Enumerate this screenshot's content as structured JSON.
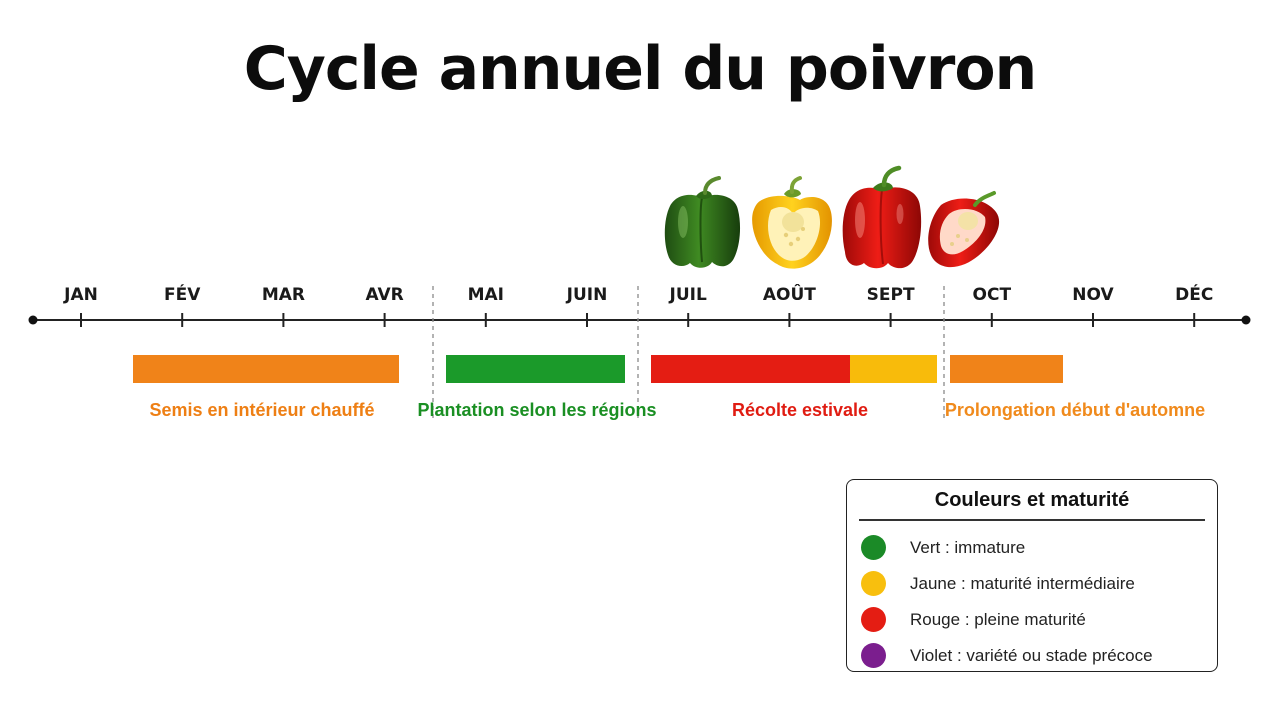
{
  "title": "Cycle annuel du poivron",
  "months": [
    "JAN",
    "FÉV",
    "MAR",
    "AVR",
    "MAI",
    "JUIN",
    "JUIL",
    "AOÛT",
    "SEPT",
    "OCT",
    "NOV",
    "DÉC"
  ],
  "phases": [
    {
      "label": "Semis en intérieur chauffé",
      "color": "#f08319",
      "start": "mi-février",
      "end": "fin avril"
    },
    {
      "label": "Plantation selon les régions",
      "color": "#1b9a2a",
      "start": "début mai",
      "end": "fin juin"
    },
    {
      "label": "Récolte estivale",
      "color": "#e41d13",
      "start": "début juillet",
      "end": "fin septembre",
      "segment_colors": [
        "#e41d13",
        "#f8bb0b"
      ]
    },
    {
      "label": "Prolongation début d'automne",
      "color": "#f08319",
      "start": "début octobre",
      "end": "mi-novembre"
    }
  ],
  "peppers": [
    "green-pepper",
    "yellow-pepper-half",
    "red-pepper",
    "red-pepper-half"
  ],
  "legend": {
    "title": "Couleurs et maturité",
    "items": [
      {
        "label": "Vert : immature",
        "color": "#1b8a27"
      },
      {
        "label": "Jaune : maturité intermédiaire",
        "color": "#f8bf0e"
      },
      {
        "label": "Rouge : pleine maturité",
        "color": "#e41d13"
      },
      {
        "label": "Violet : variété ou stade précoce",
        "color": "#7b1e8e"
      }
    ]
  }
}
